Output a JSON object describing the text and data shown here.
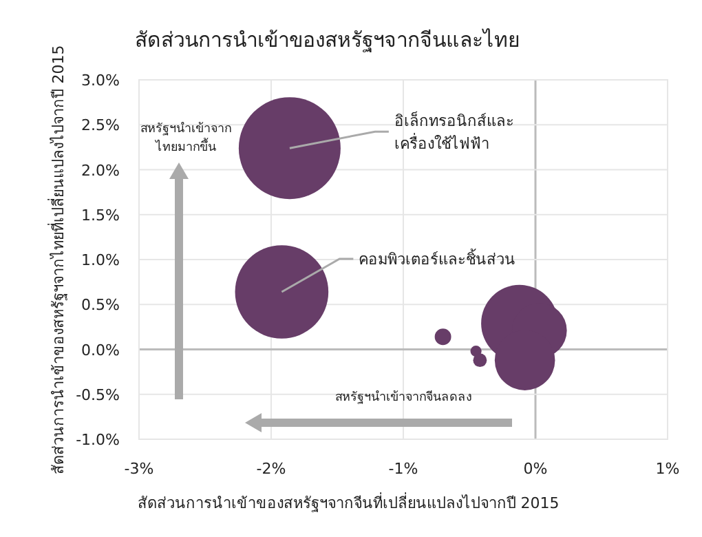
{
  "chart_data": {
    "type": "bubble",
    "title": "สัดส่วนการนำเข้าของสหรัฐฯจากจีนและไทย",
    "xlabel": "สัดส่วนการนำเข้าของสหรัฐฯจากจีนที่เปลี่ยนแปลงไปจากปี 2015",
    "ylabel": "สัดส่วนการนำเข้าของสหรัฐฯจากไทยที่เปลี่ยนแปลงไปจากปี 2015",
    "x": [
      -1.86,
      -1.92,
      -0.7,
      -0.45,
      -0.42,
      -0.12,
      0.03,
      -0.08
    ],
    "values": [
      2.24,
      0.64,
      0.14,
      -0.02,
      -0.12,
      0.29,
      0.21,
      -0.12
    ],
    "sizes": [
      1,
      0.84,
      0.026,
      0.012,
      0.018,
      0.57,
      0.29,
      0.35
    ],
    "color": "#673d68",
    "xlim": [
      -3,
      1
    ],
    "xticks": [
      {
        "value": -3,
        "label": "-3%"
      },
      {
        "value": -2,
        "label": "-2%"
      },
      {
        "value": -1,
        "label": "-1%"
      },
      {
        "value": 0,
        "label": "0%"
      },
      {
        "value": 1,
        "label": "1%"
      }
    ],
    "ylim": [
      -1,
      3
    ],
    "yticks": [
      {
        "value": -1,
        "label": "-1.0%"
      },
      {
        "value": -0.5,
        "label": "-0.5%"
      },
      {
        "value": 0,
        "label": "0.0%"
      },
      {
        "value": 0.5,
        "label": "0.5%"
      },
      {
        "value": 1,
        "label": "1.0%"
      },
      {
        "value": 1.5,
        "label": "1.5%"
      },
      {
        "value": 2,
        "label": "2.0%"
      },
      {
        "value": 2.5,
        "label": "2.5%"
      },
      {
        "value": 3,
        "label": "3.0%"
      }
    ],
    "grid": true,
    "annotations": [
      {
        "text": "อิเล็กทรอนิกส์และ\nเครื่องใช้ไฟฟ้า",
        "x": -1.86,
        "y": 2.24
      },
      {
        "text": "คอมพิวเตอร์และชิ้นส่วน",
        "x": -1.92,
        "y": 0.64
      },
      "สหรัฐฯนำเข้าจาก\nไทยมากขึ้น",
      "สหรัฐฯนำเข้าจากจีนลดลง"
    ]
  }
}
